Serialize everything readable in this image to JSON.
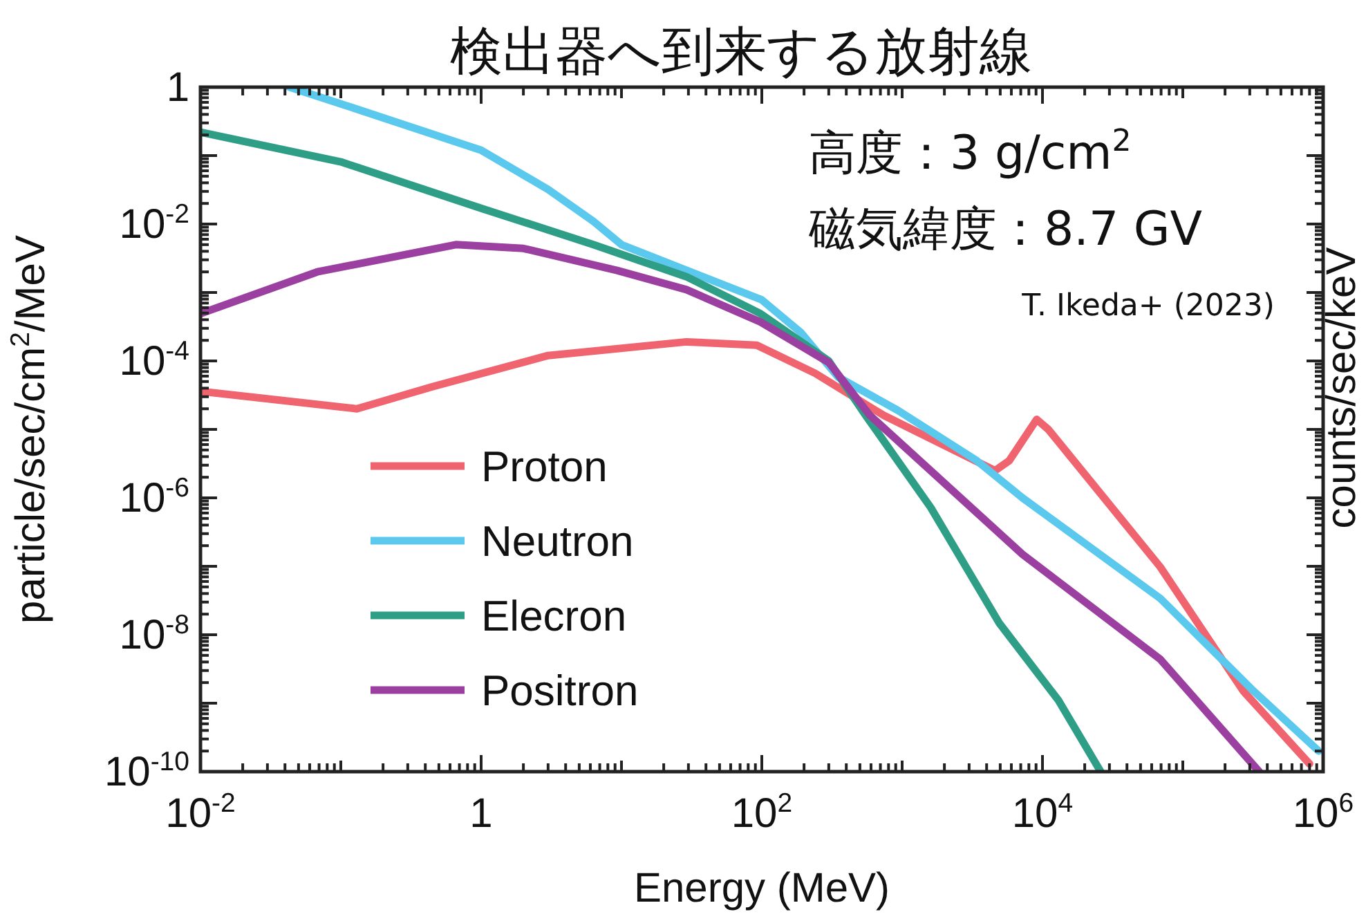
{
  "chart_data": {
    "type": "line",
    "title": "検出器へ到来する放射線",
    "xlabel": "Energy (MeV)",
    "ylabel": "particle/sec/cm$^{2}$/MeV",
    "y2label": "counts/sec/keV",
    "annotations": [
      "高度：3 g/cm$^{2}$",
      "磁気緯度：8.7 GV",
      "T. Ikeda+ (2023)"
    ],
    "log": "xy",
    "grid": false,
    "legend": "bottom left",
    "xlim": [
      0.01,
      1000000
    ],
    "ylim": [
      1e-10,
      1
    ],
    "xticks": [
      {
        "value": 0.01,
        "label": "10$^{-2}$"
      },
      {
        "value": 0.1,
        "label": null
      },
      1,
      {
        "value": 10,
        "label": null
      },
      {
        "value": 100,
        "label": "10$^{2}$"
      },
      {
        "value": 1000,
        "label": null
      },
      {
        "value": 10000,
        "label": "10$^{4}$"
      },
      {
        "value": 100000,
        "label": null
      },
      {
        "value": 1000000,
        "label": "10$^{6}$"
      }
    ],
    "yticks": [
      {
        "value": 1e-10,
        "label": "10$^{-10}$"
      },
      {
        "value": 1e-09,
        "label": null
      },
      {
        "value": 1e-08,
        "label": "10$^{-8}$"
      },
      {
        "value": 1e-07,
        "label": null
      },
      {
        "value": 1e-06,
        "label": "10$^{-6}$"
      },
      {
        "value": 1e-05,
        "label": null
      },
      {
        "value": 0.0001,
        "label": "10$^{-4}$"
      },
      {
        "value": 0.001,
        "label": null
      },
      {
        "value": 0.01,
        "label": "10$^{-2}$"
      },
      {
        "value": 0.1,
        "label": null
      },
      1
    ],
    "series": [
      {
        "name": "Proton",
        "color": "#f06470",
        "x": [
          0.01,
          0.13,
          0.45,
          3,
          29,
          92,
          240,
          740,
          4600,
          5800,
          9100,
          11000,
          69000,
          270000,
          800000
        ],
        "values": [
          3.6e-05,
          2e-05,
          4.2e-05,
          0.00012,
          0.00019,
          0.00017,
          6.6e-05,
          1.6e-05,
          2.5e-06,
          3.5e-06,
          1.4e-05,
          1e-05,
          9.8e-08,
          1.5e-09,
          1.3e-10
        ]
      },
      {
        "name": "Neutron",
        "color": "#5bc8ee",
        "x": [
          0.043,
          0.1,
          1,
          3,
          6.3,
          10,
          100,
          190,
          350,
          930,
          3400,
          7200,
          69000,
          320000,
          930000
        ],
        "values": [
          1,
          0.57,
          0.12,
          0.032,
          0.011,
          0.005,
          0.00078,
          0.00026,
          5.8e-05,
          1.9e-05,
          3.5e-06,
          1e-06,
          3.4e-08,
          1.5e-09,
          2e-10
        ]
      },
      {
        "name": "Elecron",
        "color": "#2e9e86",
        "x": [
          0.01,
          0.1,
          1,
          6.3,
          29,
          98,
          300,
          550,
          1600,
          4900,
          13000,
          26000
        ],
        "values": [
          0.22,
          0.081,
          0.017,
          0.005,
          0.0017,
          0.00049,
          0.0001,
          1.6e-05,
          7.2e-07,
          1.5e-08,
          1.1e-09,
          1e-10
        ]
      },
      {
        "name": "Positron",
        "color": "#9b3fa0",
        "x": [
          0.01,
          0.068,
          0.66,
          2,
          9.3,
          29,
          98,
          300,
          590,
          7200,
          69000,
          350000
        ],
        "values": [
          0.00049,
          0.002,
          0.005,
          0.0044,
          0.0021,
          0.0011,
          0.00037,
          9.5e-05,
          1.6e-05,
          1.5e-07,
          4.4e-09,
          1e-10
        ]
      }
    ]
  }
}
